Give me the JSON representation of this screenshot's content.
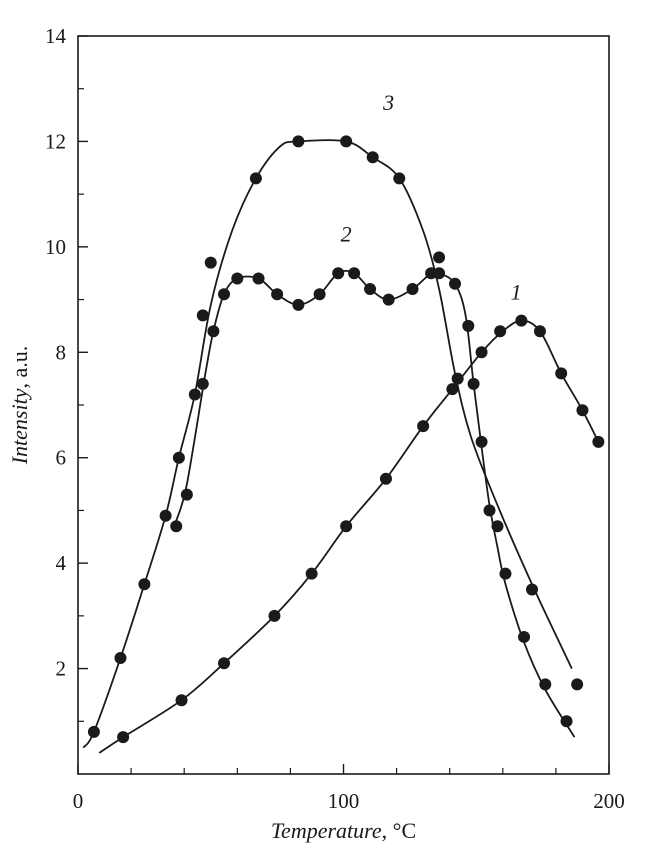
{
  "chart_data": {
    "type": "scatter",
    "title": "",
    "xlabel_italic": "Temperature",
    "xlabel_unit": ", °C",
    "ylabel_italic": "Intensity",
    "ylabel_unit": ", a.u.",
    "xlim": [
      0,
      200
    ],
    "ylim": [
      0,
      14
    ],
    "xticks": [
      0,
      100,
      200
    ],
    "yticks": [
      2,
      4,
      6,
      8,
      10,
      12,
      14
    ],
    "grid": false,
    "legend": "none",
    "series": [
      {
        "name": "1",
        "points": [
          [
            17,
            0.7
          ],
          [
            39,
            1.4
          ],
          [
            55,
            2.1
          ],
          [
            74,
            3.0
          ],
          [
            88,
            3.8
          ],
          [
            101,
            4.7
          ],
          [
            116,
            5.6
          ],
          [
            130,
            6.6
          ],
          [
            141,
            7.3
          ],
          [
            143,
            7.5
          ],
          [
            152,
            8.0
          ],
          [
            159,
            8.4
          ],
          [
            167,
            8.6
          ],
          [
            174,
            8.4
          ],
          [
            182,
            7.6
          ],
          [
            190,
            6.9
          ],
          [
            196,
            6.3
          ]
        ],
        "curve": [
          [
            8,
            0.4
          ],
          [
            17,
            0.7
          ],
          [
            39,
            1.4
          ],
          [
            55,
            2.1
          ],
          [
            74,
            3.0
          ],
          [
            88,
            3.8
          ],
          [
            101,
            4.7
          ],
          [
            116,
            5.6
          ],
          [
            130,
            6.6
          ],
          [
            141,
            7.3
          ],
          [
            152,
            8.0
          ],
          [
            160,
            8.4
          ],
          [
            167,
            8.6
          ],
          [
            174,
            8.4
          ],
          [
            182,
            7.6
          ],
          [
            190,
            6.9
          ],
          [
            196,
            6.3
          ]
        ]
      },
      {
        "name": "2",
        "points": [
          [
            37,
            4.7
          ],
          [
            41,
            5.3
          ],
          [
            51,
            8.4
          ],
          [
            55,
            9.1
          ],
          [
            60,
            9.4
          ],
          [
            68,
            9.4
          ],
          [
            75,
            9.1
          ],
          [
            83,
            8.9
          ],
          [
            91,
            9.1
          ],
          [
            98,
            9.5
          ],
          [
            104,
            9.5
          ],
          [
            110,
            9.2
          ],
          [
            117,
            9.0
          ],
          [
            126,
            9.2
          ],
          [
            133,
            9.5
          ],
          [
            136,
            9.5
          ],
          [
            142,
            9.3
          ],
          [
            147,
            8.5
          ],
          [
            149,
            7.4
          ],
          [
            152,
            6.3
          ],
          [
            155,
            5.0
          ],
          [
            158,
            4.7
          ],
          [
            161,
            3.8
          ],
          [
            168,
            2.6
          ],
          [
            176,
            1.7
          ],
          [
            184,
            1.0
          ]
        ],
        "curve": [
          [
            37,
            4.8
          ],
          [
            41,
            5.5
          ],
          [
            48,
            7.6
          ],
          [
            51,
            8.4
          ],
          [
            55,
            9.1
          ],
          [
            60,
            9.4
          ],
          [
            68,
            9.4
          ],
          [
            75,
            9.1
          ],
          [
            83,
            8.9
          ],
          [
            91,
            9.1
          ],
          [
            98,
            9.5
          ],
          [
            104,
            9.5
          ],
          [
            110,
            9.2
          ],
          [
            117,
            9.0
          ],
          [
            126,
            9.2
          ],
          [
            133,
            9.5
          ],
          [
            136,
            9.5
          ],
          [
            142,
            9.3
          ],
          [
            146,
            8.7
          ],
          [
            149,
            7.4
          ],
          [
            152,
            6.2
          ],
          [
            155,
            5.1
          ],
          [
            158,
            4.3
          ],
          [
            161,
            3.6
          ],
          [
            168,
            2.5
          ],
          [
            176,
            1.6
          ],
          [
            187,
            0.7
          ]
        ]
      },
      {
        "name": "3",
        "points": [
          [
            6,
            0.8
          ],
          [
            16,
            2.2
          ],
          [
            25,
            3.6
          ],
          [
            33,
            4.9
          ],
          [
            38,
            6.0
          ],
          [
            44,
            7.2
          ],
          [
            47,
            7.4
          ],
          [
            47,
            8.7
          ],
          [
            50,
            9.7
          ],
          [
            67,
            11.3
          ],
          [
            83,
            12.0
          ],
          [
            101,
            12.0
          ],
          [
            111,
            11.7
          ],
          [
            121,
            11.3
          ],
          [
            136,
            9.8
          ],
          [
            171,
            3.5
          ],
          [
            188,
            1.7
          ]
        ],
        "curve": [
          [
            2,
            0.5
          ],
          [
            6,
            0.8
          ],
          [
            16,
            2.2
          ],
          [
            25,
            3.6
          ],
          [
            33,
            4.9
          ],
          [
            38,
            6.0
          ],
          [
            44,
            7.2
          ],
          [
            50,
            8.9
          ],
          [
            58,
            10.3
          ],
          [
            67,
            11.3
          ],
          [
            76,
            11.9
          ],
          [
            83,
            12.0
          ],
          [
            101,
            12.0
          ],
          [
            111,
            11.7
          ],
          [
            121,
            11.3
          ],
          [
            130,
            10.3
          ],
          [
            136,
            9.2
          ],
          [
            142,
            7.6
          ],
          [
            148,
            6.4
          ],
          [
            158,
            5.1
          ],
          [
            171,
            3.6
          ],
          [
            186,
            2.0
          ]
        ]
      }
    ]
  }
}
